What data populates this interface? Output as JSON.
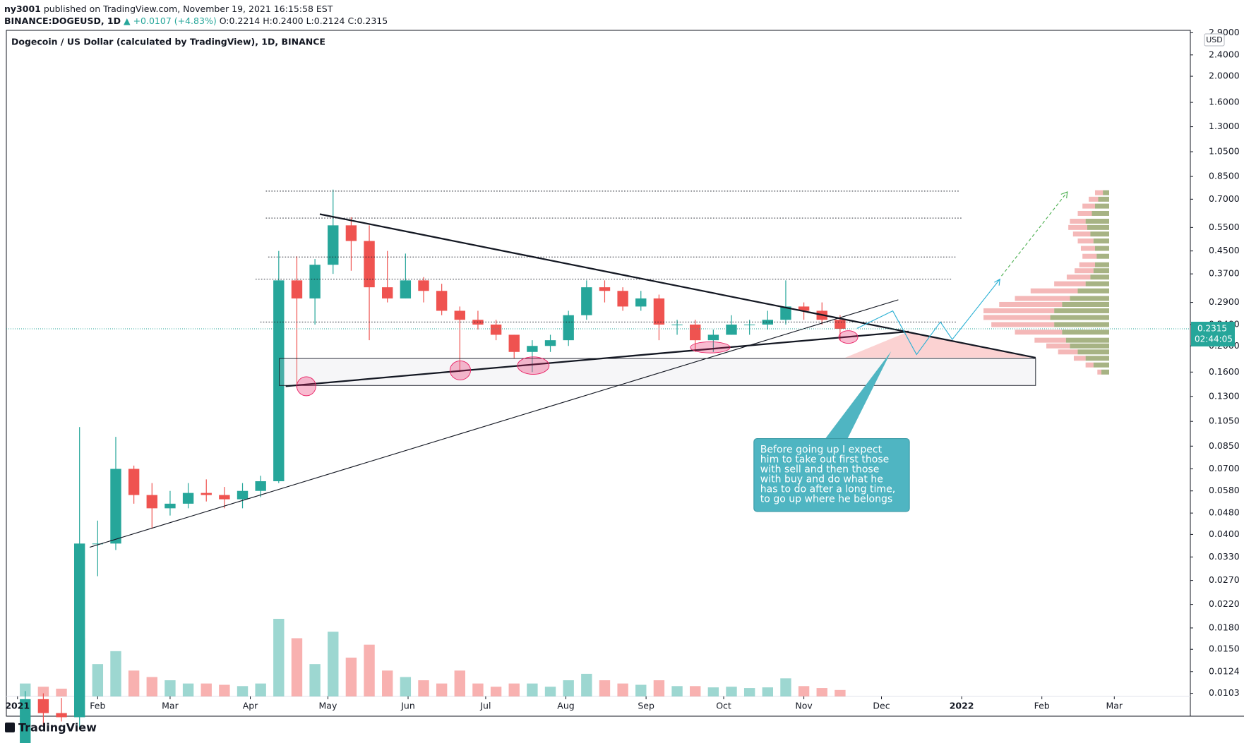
{
  "header": {
    "author": "ny3001",
    "published": "published on TradingView.com, November 19, 2021 16:15:58 EST",
    "symbol": "BINANCE:DOGEUSD, 1D",
    "change": "▲ +0.0107 (+4.83%)",
    "open": "O:0.2214",
    "high": "H:0.2400",
    "low": "L:0.2124",
    "close": "C:0.2315"
  },
  "chart_data": {
    "type": "candlestick",
    "title": "Dogecoin / US Dollar (calculated by TradingView), 1D, BINANCE",
    "y_unit": "USD",
    "log_scale": true,
    "up_color": "#26a69a",
    "down_color": "#ef5350",
    "ylim": [
      0.01003,
      2.96
    ],
    "yticks": [
      {
        "value": 2.9,
        "label": "2.9000"
      },
      {
        "value": 2.4,
        "label": "2.4000"
      },
      {
        "value": 2.0,
        "label": "2.0000"
      },
      {
        "value": 1.6,
        "label": "1.6000"
      },
      {
        "value": 1.3,
        "label": "1.3000"
      },
      {
        "value": 1.05,
        "label": "1.0500"
      },
      {
        "value": 0.85,
        "label": "0.8500"
      },
      {
        "value": 0.7,
        "label": "0.7000"
      },
      {
        "value": 0.55,
        "label": "0.5500"
      },
      {
        "value": 0.45,
        "label": "0.4500"
      },
      {
        "value": 0.37,
        "label": "0.3700"
      },
      {
        "value": 0.29,
        "label": "0.2900"
      },
      {
        "value": 0.24,
        "label": "0.2400"
      },
      {
        "value": 0.2,
        "label": "0.2000"
      },
      {
        "value": 0.16,
        "label": "0.1600"
      },
      {
        "value": 0.13,
        "label": "0.1300"
      },
      {
        "value": 0.105,
        "label": "0.1050"
      },
      {
        "value": 0.085,
        "label": "0.0850"
      },
      {
        "value": 0.07,
        "label": "0.0700"
      },
      {
        "value": 0.058,
        "label": "0.0580"
      },
      {
        "value": 0.048,
        "label": "0.0480"
      },
      {
        "value": 0.04,
        "label": "0.0400"
      },
      {
        "value": 0.033,
        "label": "0.0330"
      },
      {
        "value": 0.027,
        "label": "0.0270"
      },
      {
        "value": 0.022,
        "label": "0.0220"
      },
      {
        "value": 0.018,
        "label": "0.0180"
      },
      {
        "value": 0.015,
        "label": "0.0150"
      },
      {
        "value": 0.0124,
        "label": "0.0124"
      },
      {
        "value": 0.0103,
        "label": "0.0103"
      }
    ],
    "xlim": [
      -4.3,
      453.4
    ],
    "xticks": [
      {
        "value": 0,
        "label": "2021"
      },
      {
        "value": 31,
        "label": "Feb"
      },
      {
        "value": 59,
        "label": "Mar"
      },
      {
        "value": 90,
        "label": "Apr"
      },
      {
        "value": 120,
        "label": "May"
      },
      {
        "value": 151,
        "label": "Jun"
      },
      {
        "value": 181,
        "label": "Jul"
      },
      {
        "value": 212,
        "label": "Aug"
      },
      {
        "value": 243,
        "label": "Sep"
      },
      {
        "value": 273,
        "label": "Oct"
      },
      {
        "value": 304,
        "label": "Nov"
      },
      {
        "value": 334,
        "label": "Dec"
      },
      {
        "value": 365,
        "label": "2022"
      },
      {
        "value": 396,
        "label": "Feb"
      },
      {
        "value": 424,
        "label": "Mar"
      }
    ],
    "x": [
      3,
      10,
      17,
      24,
      31,
      38,
      45,
      52,
      59,
      66,
      73,
      80,
      87,
      94,
      101,
      108,
      115,
      122,
      129,
      136,
      143,
      150,
      157,
      164,
      171,
      178,
      185,
      192,
      199,
      206,
      213,
      220,
      227,
      234,
      241,
      248,
      255,
      262,
      269,
      276,
      283,
      290,
      297,
      304,
      311,
      318
    ],
    "open": [
      0.0057,
      0.0098,
      0.0087,
      0.0084,
      0.037,
      0.037,
      0.07,
      0.056,
      0.05,
      0.052,
      0.057,
      0.056,
      0.054,
      0.058,
      0.063,
      0.35,
      0.3,
      0.4,
      0.56,
      0.49,
      0.33,
      0.3,
      0.35,
      0.32,
      0.27,
      0.25,
      0.24,
      0.22,
      0.19,
      0.2,
      0.21,
      0.26,
      0.33,
      0.32,
      0.28,
      0.3,
      0.24,
      0.24,
      0.21,
      0.22,
      0.24,
      0.24,
      0.25,
      0.28,
      0.27,
      0.25
    ],
    "high": [
      0.0105,
      0.0103,
      0.0099,
      0.1,
      0.045,
      0.092,
      0.072,
      0.062,
      0.058,
      0.062,
      0.064,
      0.06,
      0.062,
      0.066,
      0.45,
      0.43,
      0.42,
      0.76,
      0.6,
      0.56,
      0.45,
      0.44,
      0.36,
      0.34,
      0.28,
      0.27,
      0.25,
      0.22,
      0.21,
      0.22,
      0.27,
      0.35,
      0.35,
      0.33,
      0.32,
      0.31,
      0.25,
      0.25,
      0.23,
      0.26,
      0.25,
      0.27,
      0.35,
      0.29,
      0.29,
      0.26
    ],
    "low": [
      0.0055,
      0.0078,
      0.0081,
      0.0077,
      0.028,
      0.035,
      0.052,
      0.042,
      0.047,
      0.05,
      0.053,
      0.05,
      0.05,
      0.055,
      0.062,
      0.14,
      0.24,
      0.37,
      0.38,
      0.21,
      0.29,
      0.3,
      0.29,
      0.26,
      0.16,
      0.23,
      0.21,
      0.18,
      0.16,
      0.19,
      0.2,
      0.25,
      0.29,
      0.27,
      0.27,
      0.21,
      0.22,
      0.19,
      0.19,
      0.22,
      0.22,
      0.23,
      0.24,
      0.25,
      0.24,
      0.21
    ],
    "close": [
      0.0098,
      0.0087,
      0.0084,
      0.037,
      0.037,
      0.07,
      0.056,
      0.05,
      0.052,
      0.057,
      0.056,
      0.054,
      0.058,
      0.063,
      0.35,
      0.3,
      0.4,
      0.56,
      0.49,
      0.33,
      0.3,
      0.35,
      0.32,
      0.27,
      0.25,
      0.24,
      0.22,
      0.19,
      0.2,
      0.21,
      0.26,
      0.33,
      0.32,
      0.28,
      0.3,
      0.24,
      0.24,
      0.21,
      0.22,
      0.24,
      0.24,
      0.25,
      0.28,
      0.27,
      0.25,
      0.2315
    ],
    "volume": [
      2,
      1.5,
      1.2,
      9,
      5,
      7,
      4,
      3,
      2.5,
      2,
      2,
      1.8,
      1.6,
      2,
      12,
      9,
      5,
      10,
      6,
      8,
      4,
      3,
      2.5,
      2,
      4,
      2,
      1.5,
      2,
      2,
      1.5,
      2.5,
      3.5,
      2.5,
      2,
      1.8,
      2.5,
      1.6,
      1.6,
      1.4,
      1.5,
      1.3,
      1.4,
      2.8,
      1.6,
      1.3,
      1
    ],
    "last_price": 0.2315,
    "countdown": "02:44:05",
    "volume_profile": {
      "prices": [
        0.74,
        0.7,
        0.66,
        0.62,
        0.58,
        0.55,
        0.52,
        0.49,
        0.46,
        0.43,
        0.4,
        0.38,
        0.36,
        0.34,
        0.32,
        0.3,
        0.285,
        0.27,
        0.255,
        0.24,
        0.225,
        0.21,
        0.2,
        0.19,
        0.18,
        0.17,
        0.16
      ],
      "buy": [
        8,
        14,
        18,
        22,
        30,
        28,
        24,
        20,
        18,
        16,
        18,
        20,
        24,
        30,
        40,
        50,
        60,
        70,
        75,
        70,
        60,
        55,
        50,
        40,
        30,
        20,
        10
      ],
      "sell": [
        10,
        12,
        16,
        18,
        20,
        24,
        22,
        20,
        18,
        18,
        20,
        24,
        30,
        40,
        60,
        70,
        80,
        90,
        85,
        80,
        60,
        40,
        30,
        25,
        15,
        10,
        5
      ]
    },
    "annotation": [
      "Before going up I expect",
      "him to take out first those",
      "with sell and then those",
      "with buy and do what he",
      "has to do after a long time,",
      "to go up where he belongs"
    ]
  },
  "footer": {
    "brand": "TradingView"
  }
}
